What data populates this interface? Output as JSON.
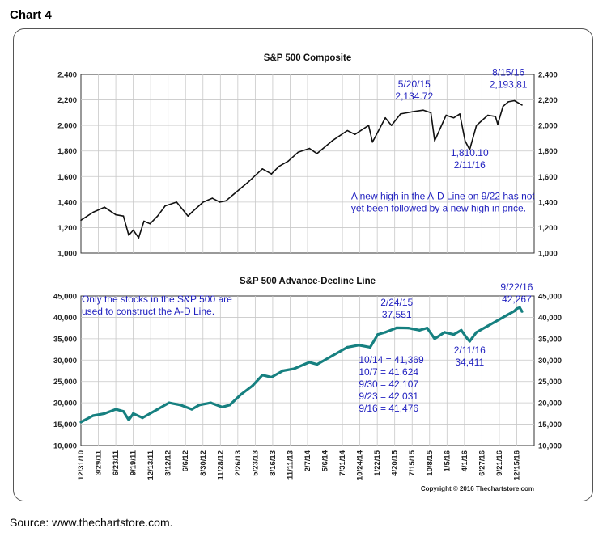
{
  "page": {
    "label": "Chart 4",
    "source": "Source: www.thechartstore.com."
  },
  "chart_data": [
    {
      "type": "line",
      "title": "S&P 500 Composite",
      "xlabel": "",
      "ylabel": "",
      "ylim": [
        1000,
        2400
      ],
      "y_ticks": [
        "1,000",
        "1,200",
        "1,400",
        "1,600",
        "1,800",
        "2,000",
        "2,200",
        "2,400"
      ],
      "grid": true,
      "series": [
        {
          "color": "#111111",
          "x": [
            2010.99,
            2011.15,
            2011.3,
            2011.45,
            2011.55,
            2011.62,
            2011.68,
            2011.75,
            2011.82,
            2011.9,
            2012.0,
            2012.1,
            2012.25,
            2012.4,
            2012.45,
            2012.6,
            2012.72,
            2012.82,
            2012.9,
            2013.0,
            2013.2,
            2013.38,
            2013.5,
            2013.6,
            2013.72,
            2013.85,
            2014.0,
            2014.1,
            2014.3,
            2014.5,
            2014.6,
            2014.78,
            2014.83,
            2015.0,
            2015.08,
            2015.2,
            2015.38,
            2015.5,
            2015.6,
            2015.65,
            2015.8,
            2015.9,
            2015.98,
            2016.05,
            2016.11,
            2016.2,
            2016.35,
            2016.45,
            2016.48,
            2016.55,
            2016.62,
            2016.7,
            2016.8
          ],
          "values": [
            1258,
            1320,
            1360,
            1300,
            1290,
            1140,
            1180,
            1120,
            1250,
            1230,
            1290,
            1370,
            1400,
            1290,
            1320,
            1400,
            1430,
            1400,
            1410,
            1460,
            1560,
            1660,
            1620,
            1680,
            1720,
            1790,
            1820,
            1780,
            1880,
            1960,
            1930,
            2000,
            1870,
            2060,
            2000,
            2090,
            2110,
            2120,
            2100,
            1880,
            2080,
            2060,
            2090,
            1880,
            1810,
            2000,
            2080,
            2070,
            2010,
            2150,
            2185,
            2194,
            2160
          ]
        }
      ],
      "annotations": [
        {
          "text": [
            "5/20/15",
            "2,134.72"
          ],
          "x": 2015.38,
          "y": 2300,
          "anchor": "middle"
        },
        {
          "text": [
            "8/15/16",
            "2,193.81"
          ],
          "x": 2016.62,
          "y": 2390,
          "anchor": "middle"
        },
        {
          "text": [
            "1,810.10",
            "2/11/16"
          ],
          "x": 2016.11,
          "y": 1760,
          "anchor": "middle"
        },
        {
          "text": [
            "A new high in the A-D Line on 9/22 has not",
            "yet been followed by a new high in price."
          ],
          "x": 2014.55,
          "y": 1420,
          "anchor": "start"
        }
      ]
    },
    {
      "type": "line",
      "title": "S&P 500 Advance-Decline Line",
      "xlabel": "",
      "ylabel": "",
      "ylim": [
        10000,
        45000
      ],
      "y_ticks": [
        "10,000",
        "15,000",
        "20,000",
        "25,000",
        "30,000",
        "35,000",
        "40,000",
        "45,000"
      ],
      "x_ticks": [
        "12/31/10",
        "3/29/11",
        "6/23/11",
        "9/19/11",
        "12/13/11",
        "3/12/12",
        "6/6/12",
        "8/30/12",
        "11/28/12",
        "2/26/13",
        "5/23/13",
        "8/16/13",
        "11/11/13",
        "2/7/14",
        "5/6/14",
        "7/31/14",
        "10/24/14",
        "1/22/15",
        "4/20/15",
        "7/15/15",
        "10/8/15",
        "1/5/16",
        "4/1/16",
        "6/27/16",
        "9/21/16",
        "12/15/16"
      ],
      "grid": true,
      "series": [
        {
          "color": "#168080",
          "x": [
            2010.99,
            2011.15,
            2011.3,
            2011.45,
            2011.55,
            2011.62,
            2011.68,
            2011.8,
            2011.9,
            2012.0,
            2012.15,
            2012.3,
            2012.45,
            2012.55,
            2012.7,
            2012.85,
            2012.95,
            2013.1,
            2013.25,
            2013.38,
            2013.5,
            2013.65,
            2013.8,
            2014.0,
            2014.1,
            2014.3,
            2014.5,
            2014.65,
            2014.8,
            2014.9,
            2015.0,
            2015.15,
            2015.3,
            2015.45,
            2015.55,
            2015.65,
            2015.78,
            2015.9,
            2016.0,
            2016.08,
            2016.11,
            2016.2,
            2016.35,
            2016.5,
            2016.6,
            2016.7,
            2016.73,
            2016.77,
            2016.8
          ],
          "values": [
            15500,
            17000,
            17500,
            18500,
            18000,
            16000,
            17500,
            16500,
            17500,
            18500,
            20000,
            19500,
            18500,
            19500,
            20000,
            19000,
            19500,
            22000,
            24000,
            26500,
            26000,
            27500,
            28000,
            29500,
            29000,
            31000,
            33000,
            33500,
            33000,
            36000,
            36500,
            37551,
            37500,
            37000,
            37500,
            35000,
            36500,
            36000,
            37000,
            35000,
            34411,
            36500,
            38000,
            39500,
            40500,
            41476,
            42031,
            42267,
            41369
          ]
        }
      ],
      "annotations": [
        {
          "text": [
            "Only the stocks in the S&P 500 are",
            "used to construct the A-D Line."
          ],
          "x": 2011.0,
          "y": 43500,
          "anchor": "start"
        },
        {
          "text": [
            "2/24/15",
            "37,551"
          ],
          "x": 2015.15,
          "y": 42700,
          "anchor": "middle"
        },
        {
          "text": [
            "9/22/16",
            "42,267"
          ],
          "x": 2016.73,
          "y": 46300,
          "anchor": "middle"
        },
        {
          "text": [
            "2/11/16",
            "34,411"
          ],
          "x": 2016.11,
          "y": 31600,
          "anchor": "middle"
        },
        {
          "text": [
            "10/14 = 41,369",
            "10/7 = 41,624",
            "9/30 = 42,107",
            "9/23 = 42,031",
            "9/16 = 41,476"
          ],
          "x": 2014.65,
          "y": 29300,
          "anchor": "start"
        }
      ]
    }
  ],
  "copyright": "Copyright © 2016 Thechartstore.com"
}
